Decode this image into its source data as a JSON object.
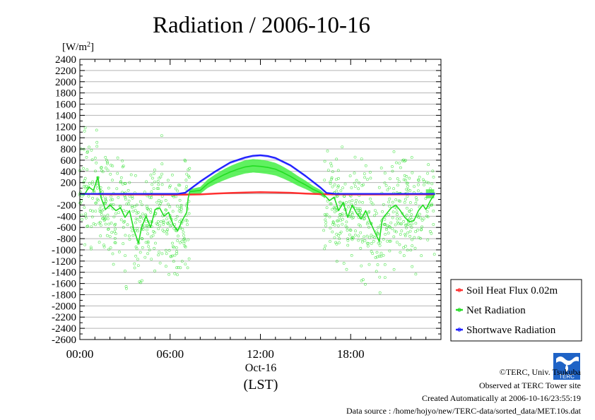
{
  "chart_data": {
    "type": "line",
    "title": "Radiation / 2006-10-16",
    "ylabel": "[W/m2]",
    "ylabel_unit": "[W/m",
    "ylabel_sup": "2",
    "ylabel_close": "]",
    "ylim": [
      -2600,
      2400
    ],
    "yticks": [
      "2400",
      "2200",
      "2000",
      "1800",
      "1600",
      "1400",
      "1200",
      "1000",
      "800",
      "600",
      "400",
      "200",
      "0",
      "-200",
      "-400",
      "-600",
      "-800",
      "-1000",
      "-1200",
      "-1400",
      "-1600",
      "-1800",
      "-2000",
      "-2200",
      "-2400",
      "-2600"
    ],
    "xlim": [
      0,
      24
    ],
    "xticks": [
      {
        "h": 0,
        "label": "00:00"
      },
      {
        "h": 6,
        "label": "06:00"
      },
      {
        "h": 12,
        "label": "12:00"
      },
      {
        "h": 18,
        "label": "18:00"
      }
    ],
    "xlabel_date": "Oct-16",
    "xlabel": "(LST)",
    "grid": true,
    "legend_position": "right",
    "series": [
      {
        "name": "Soil Heat Flux 0.02m",
        "color": "#ff3030",
        "points": [
          [
            0,
            0
          ],
          [
            2,
            -10
          ],
          [
            4,
            -12
          ],
          [
            6,
            -15
          ],
          [
            7,
            -15
          ],
          [
            8,
            -10
          ],
          [
            9,
            5
          ],
          [
            10,
            15
          ],
          [
            11,
            22
          ],
          [
            12,
            28
          ],
          [
            13,
            25
          ],
          [
            14,
            18
          ],
          [
            15,
            5
          ],
          [
            16,
            -5
          ],
          [
            17,
            -10
          ],
          [
            18,
            -12
          ],
          [
            20,
            -12
          ],
          [
            22,
            -10
          ],
          [
            23.5,
            -10
          ]
        ]
      },
      {
        "name": "Net Radiation",
        "color": "#22dd22",
        "points": [
          [
            0,
            0
          ],
          [
            0.3,
            -20
          ],
          [
            0.6,
            120
          ],
          [
            0.9,
            60
          ],
          [
            1.2,
            300
          ],
          [
            1.4,
            -60
          ],
          [
            1.7,
            -280
          ],
          [
            2,
            -200
          ],
          [
            2.4,
            -300
          ],
          [
            2.7,
            -250
          ],
          [
            3,
            -420
          ],
          [
            3.3,
            -300
          ],
          [
            3.6,
            -650
          ],
          [
            3.9,
            -880
          ],
          [
            4.1,
            -600
          ],
          [
            4.4,
            -400
          ],
          [
            4.7,
            -600
          ],
          [
            5,
            -280
          ],
          [
            5.3,
            -250
          ],
          [
            5.6,
            -400
          ],
          [
            5.9,
            -330
          ],
          [
            6.2,
            -550
          ],
          [
            6.5,
            -660
          ],
          [
            6.8,
            -480
          ],
          [
            7.1,
            -330
          ],
          [
            7.2,
            -80
          ],
          [
            7.3,
            40
          ],
          [
            8,
            60
          ],
          [
            8.5,
            180
          ],
          [
            9,
            260
          ],
          [
            9.5,
            330
          ],
          [
            10,
            390
          ],
          [
            10.5,
            440
          ],
          [
            11,
            480
          ],
          [
            11.5,
            500
          ],
          [
            12,
            490
          ],
          [
            12.5,
            470
          ],
          [
            13,
            440
          ],
          [
            13.5,
            380
          ],
          [
            14,
            310
          ],
          [
            14.5,
            230
          ],
          [
            15,
            160
          ],
          [
            15.5,
            80
          ],
          [
            16,
            20
          ],
          [
            16.3,
            -40
          ],
          [
            16.6,
            -120
          ],
          [
            16.9,
            -60
          ],
          [
            17.2,
            -300
          ],
          [
            17.5,
            -150
          ],
          [
            17.8,
            -420
          ],
          [
            18.1,
            -200
          ],
          [
            18.4,
            -350
          ],
          [
            18.7,
            -450
          ],
          [
            19,
            -300
          ],
          [
            19.3,
            -500
          ],
          [
            19.6,
            -680
          ],
          [
            19.9,
            -850
          ],
          [
            20.1,
            -450
          ],
          [
            20.4,
            -350
          ],
          [
            20.7,
            -250
          ],
          [
            21,
            -200
          ],
          [
            21.3,
            -300
          ],
          [
            21.6,
            -420
          ],
          [
            21.9,
            -500
          ],
          [
            22.2,
            -480
          ],
          [
            22.5,
            -300
          ],
          [
            22.8,
            -200
          ],
          [
            23,
            -280
          ],
          [
            23.3,
            -120
          ],
          [
            23.6,
            0
          ]
        ]
      },
      {
        "name": "Shortwave Radiation",
        "color": "#2020ff",
        "points": [
          [
            0,
            0
          ],
          [
            6.5,
            0
          ],
          [
            7,
            20
          ],
          [
            7.4,
            100
          ],
          [
            8,
            220
          ],
          [
            9,
            400
          ],
          [
            10,
            560
          ],
          [
            11,
            650
          ],
          [
            11.5,
            680
          ],
          [
            12,
            690
          ],
          [
            12.5,
            675
          ],
          [
            13,
            640
          ],
          [
            14,
            510
          ],
          [
            15,
            320
          ],
          [
            16,
            110
          ],
          [
            16.4,
            15
          ],
          [
            17,
            0
          ],
          [
            23.6,
            0
          ]
        ]
      }
    ]
  },
  "footer": {
    "copyright": "©TERC, Univ. Tsukuba",
    "site": "Observed at TERC Tower site",
    "created": "Created Automatically at 2006-10-16/23:55:19",
    "source": "Data source : /home/hojyo/new/TERC-data/sorted_data/MET.10s.dat"
  },
  "logo": {
    "text": "TERC",
    "color": "#1f63c6"
  }
}
